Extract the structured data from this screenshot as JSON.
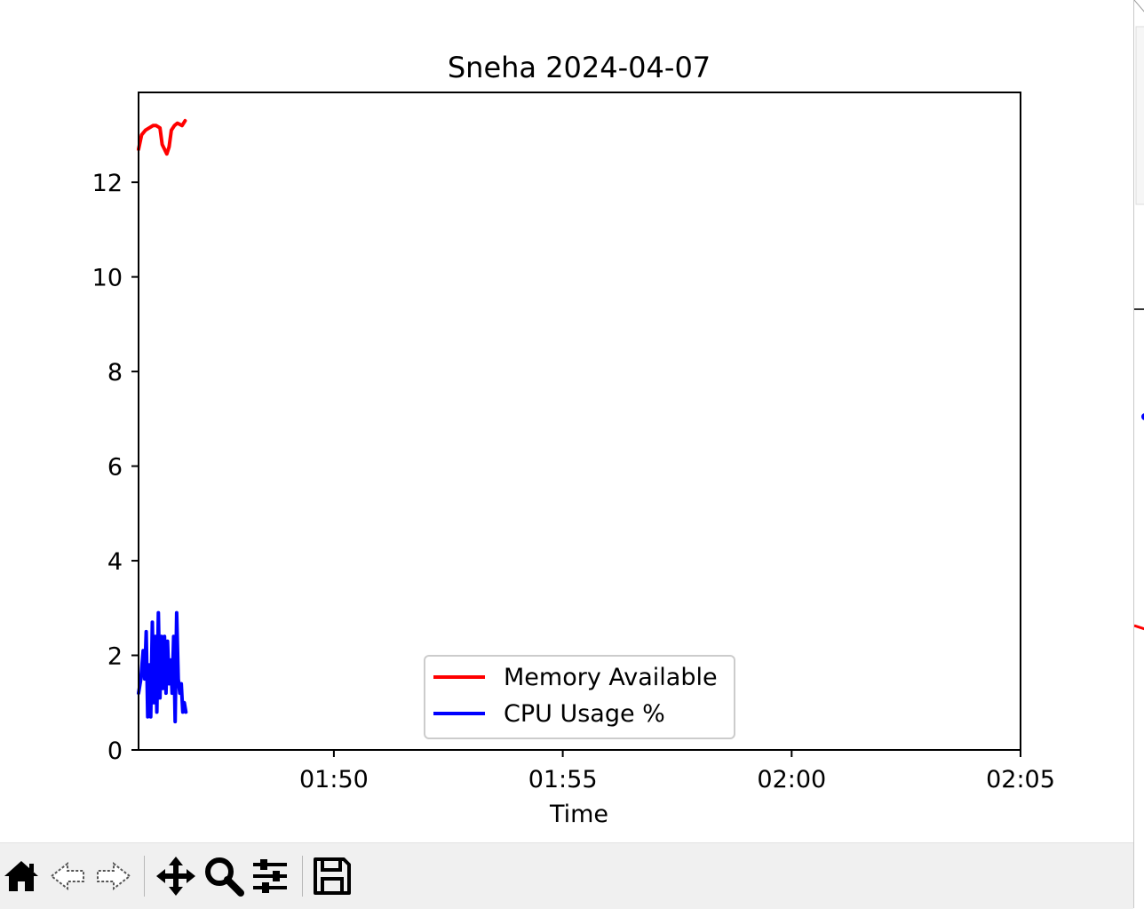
{
  "window": {
    "figure_title": "Sneha 2024-04-07"
  },
  "toolbar": {
    "buttons": [
      {
        "icon": "home-icon"
      },
      {
        "icon": "back-arrow-icon"
      },
      {
        "icon": "forward-arrow-icon"
      },
      {
        "icon": "pan-move-icon"
      },
      {
        "icon": "zoom-magnifier-icon"
      },
      {
        "icon": "configure-subplots-icon"
      },
      {
        "icon": "save-floppy-icon"
      }
    ]
  },
  "chart_data": {
    "type": "line",
    "title": "Sneha 2024-04-07",
    "xlabel": "Time",
    "ylabel": "",
    "xlim": [
      "01:45:44",
      "02:05:00"
    ],
    "ylim": [
      0,
      13.9
    ],
    "x_ticks": [
      "01:50",
      "01:55",
      "02:00",
      "02:05"
    ],
    "y_ticks": [
      0,
      2,
      4,
      6,
      8,
      10,
      12
    ],
    "grid": false,
    "legend_position": "lower center",
    "series": [
      {
        "name": "Memory Available",
        "color": "#ff0000",
        "x": [
          "01:45:44",
          "01:45:48",
          "01:45:53",
          "01:45:58",
          "01:46:03",
          "01:46:07",
          "01:46:12",
          "01:46:15",
          "01:46:18",
          "01:46:21",
          "01:46:24",
          "01:46:27",
          "01:46:31",
          "01:46:35",
          "01:46:41",
          "01:46:45"
        ],
        "y": [
          12.7,
          13.0,
          13.1,
          13.15,
          13.2,
          13.2,
          13.15,
          12.8,
          12.7,
          12.6,
          12.75,
          13.1,
          13.2,
          13.25,
          13.2,
          13.3
        ]
      },
      {
        "name": "CPU Usage %",
        "color": "#0000ff",
        "x": [
          "01:45:44",
          "01:45:47",
          "01:45:50",
          "01:45:52",
          "01:45:54",
          "01:45:56",
          "01:45:58",
          "01:46:00",
          "01:46:02",
          "01:46:04",
          "01:46:06",
          "01:46:08",
          "01:46:10",
          "01:46:12",
          "01:46:14",
          "01:46:16",
          "01:46:18",
          "01:46:20",
          "01:46:22",
          "01:46:24",
          "01:46:26",
          "01:46:28",
          "01:46:30",
          "01:46:32",
          "01:46:34",
          "01:46:36",
          "01:46:38",
          "01:46:40",
          "01:46:42",
          "01:46:44",
          "01:46:46"
        ],
        "y": [
          1.2,
          1.5,
          2.1,
          1.5,
          2.5,
          0.7,
          1.8,
          0.7,
          2.7,
          1.0,
          2.4,
          0.8,
          2.9,
          1.1,
          2.4,
          1.3,
          2.4,
          1.2,
          2.3,
          1.4,
          1.9,
          1.2,
          2.4,
          0.6,
          2.9,
          1.5,
          1.2,
          1.4,
          0.8,
          1.0,
          0.8
        ]
      }
    ]
  }
}
